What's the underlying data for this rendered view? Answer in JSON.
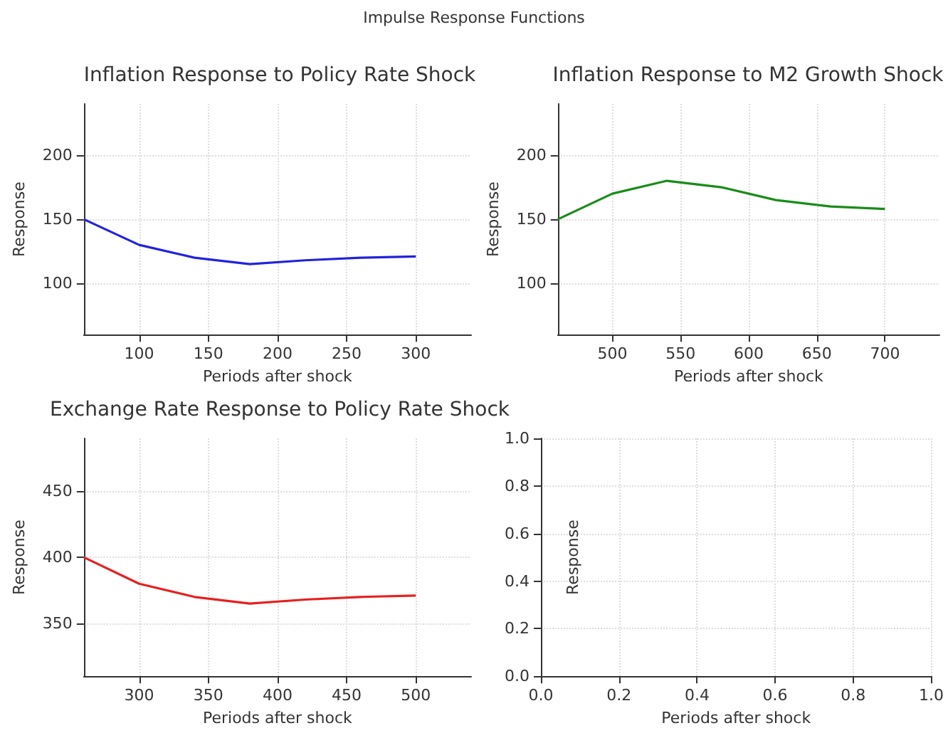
{
  "chart_data": [
    {
      "type": "line",
      "title": "Inflation Response to Policy Rate Shock",
      "xlabel": "Periods after shock",
      "ylabel": "Response",
      "annotations": [
        "Impulse Response Functions"
      ],
      "xlim": [
        60,
        340
      ],
      "xticks": [
        100,
        150,
        200,
        250,
        300
      ],
      "ylim": [
        60,
        240
      ],
      "yticks": [
        100,
        150,
        200
      ],
      "grid": true,
      "series": [
        {
          "color": "#2222dd",
          "x": [
            60,
            100,
            140,
            180,
            220,
            260,
            300
          ],
          "values": [
            150,
            130,
            120,
            115,
            118,
            120,
            121
          ]
        }
      ]
    },
    {
      "type": "line",
      "title": "Inflation Response to M2 Growth Shock",
      "xlabel": "Periods after shock",
      "ylabel": "Response",
      "xlim": [
        460,
        740
      ],
      "xticks": [
        500,
        550,
        600,
        650,
        700
      ],
      "ylim": [
        60,
        240
      ],
      "yticks": [
        100,
        150,
        200
      ],
      "grid": true,
      "series": [
        {
          "color": "#1a8c1a",
          "x": [
            460,
            500,
            540,
            580,
            620,
            660,
            700
          ],
          "values": [
            150,
            170,
            180,
            175,
            165,
            160,
            158
          ]
        }
      ]
    },
    {
      "type": "line",
      "title": "Exchange Rate Response to Policy Rate Shock",
      "xlabel": "Periods after shock",
      "ylabel": "Response",
      "xlim": [
        260,
        540
      ],
      "xticks": [
        300,
        350,
        400,
        450,
        500
      ],
      "ylim": [
        310,
        490
      ],
      "yticks": [
        350,
        400,
        450
      ],
      "grid": true,
      "series": [
        {
          "color": "#e62020",
          "x": [
            260,
            300,
            340,
            380,
            420,
            460,
            500
          ],
          "values": [
            400,
            380,
            370,
            365,
            368,
            370,
            371
          ]
        }
      ]
    },
    {
      "type": "line",
      "xlabel": "Periods after shock",
      "ylabel": "Response",
      "xlim": [
        0,
        1
      ],
      "xticks": [
        {
          "value": 0,
          "label": "0.0"
        },
        {
          "value": 0.2,
          "label": "0.2"
        },
        {
          "value": 0.4,
          "label": "0.4"
        },
        {
          "value": 0.6,
          "label": "0.6"
        },
        {
          "value": 0.8,
          "label": "0.8"
        },
        {
          "value": 1,
          "label": "1.0"
        }
      ],
      "ylim": [
        0,
        1
      ],
      "yticks": [
        {
          "value": 0,
          "label": "0.0"
        },
        {
          "value": 0.2,
          "label": "0.2"
        },
        {
          "value": 0.4,
          "label": "0.4"
        },
        {
          "value": 0.6,
          "label": "0.6"
        },
        {
          "value": 0.8,
          "label": "0.8"
        },
        {
          "value": 1,
          "label": "1.0"
        }
      ],
      "grid": true
    }
  ]
}
